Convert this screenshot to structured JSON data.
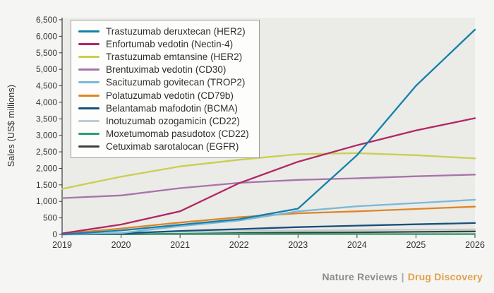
{
  "figure": {
    "y_axis_title": "Sales (US$ millions)",
    "footer": {
      "journal": "Nature Reviews",
      "separator": "|",
      "publication": "Drug Discovery"
    },
    "colors": {
      "page_bg": "#f5f5f3",
      "plot_bg": "#ebebe7",
      "axis": "#3a3a3a",
      "tick_label": "#333333",
      "legend_bg": "#fdfdfc",
      "legend_border": "#9b9b9b",
      "footer_gray": "#8c8c8c",
      "footer_orange": "#dfa14c"
    }
  },
  "chart_data": {
    "type": "line",
    "title": "",
    "xlabel": "",
    "ylabel": "Sales (US$ millions)",
    "x": [
      2019,
      2020,
      2021,
      2022,
      2023,
      2024,
      2025,
      2026
    ],
    "ylim": [
      0,
      6500
    ],
    "ytick_step": 500,
    "grid": false,
    "legend_position": "top-left",
    "series": [
      {
        "name": "Trastuzumab deruxtecan (HER2)",
        "color": "#1480ab",
        "values": [
          0,
          120,
          290,
          460,
          780,
          2400,
          4500,
          6200
        ]
      },
      {
        "name": "Enfortumab vedotin (Nectin-4)",
        "color": "#b02765",
        "values": [
          30,
          300,
          700,
          1550,
          2200,
          2700,
          3150,
          3520
        ]
      },
      {
        "name": "Trastuzumab emtansine (HER2)",
        "color": "#c9cf4e",
        "values": [
          1380,
          1750,
          2060,
          2260,
          2430,
          2460,
          2400,
          2300
        ]
      },
      {
        "name": "Brentuximab vedotin (CD30)",
        "color": "#a873aa",
        "values": [
          1100,
          1180,
          1400,
          1560,
          1650,
          1700,
          1760,
          1810
        ]
      },
      {
        "name": "Sacituzumab govitecan (TROP2)",
        "color": "#7db8d8",
        "values": [
          0,
          40,
          250,
          420,
          700,
          850,
          950,
          1050
        ]
      },
      {
        "name": "Polatuzumab vedotin (CD79b)",
        "color": "#de8627",
        "values": [
          20,
          180,
          360,
          520,
          640,
          700,
          770,
          840
        ]
      },
      {
        "name": "Belantamab mafodotin (BCMA)",
        "color": "#17507b",
        "values": [
          0,
          30,
          105,
          160,
          220,
          265,
          305,
          345
        ]
      },
      {
        "name": "Inotuzumab ozogamicin (CD22)",
        "color": "#c2cbcd",
        "values": [
          10,
          45,
          80,
          105,
          120,
          132,
          142,
          152
        ]
      },
      {
        "name": "Moxetumomab pasudotox (CD22)",
        "color": "#2d9e6e",
        "values": [
          5,
          15,
          20,
          18,
          14,
          12,
          10,
          10
        ]
      },
      {
        "name": "Cetuximab sarotalocan (EGFR)",
        "color": "#3f3f3f",
        "values": [
          0,
          5,
          20,
          40,
          55,
          65,
          78,
          90
        ]
      }
    ]
  }
}
